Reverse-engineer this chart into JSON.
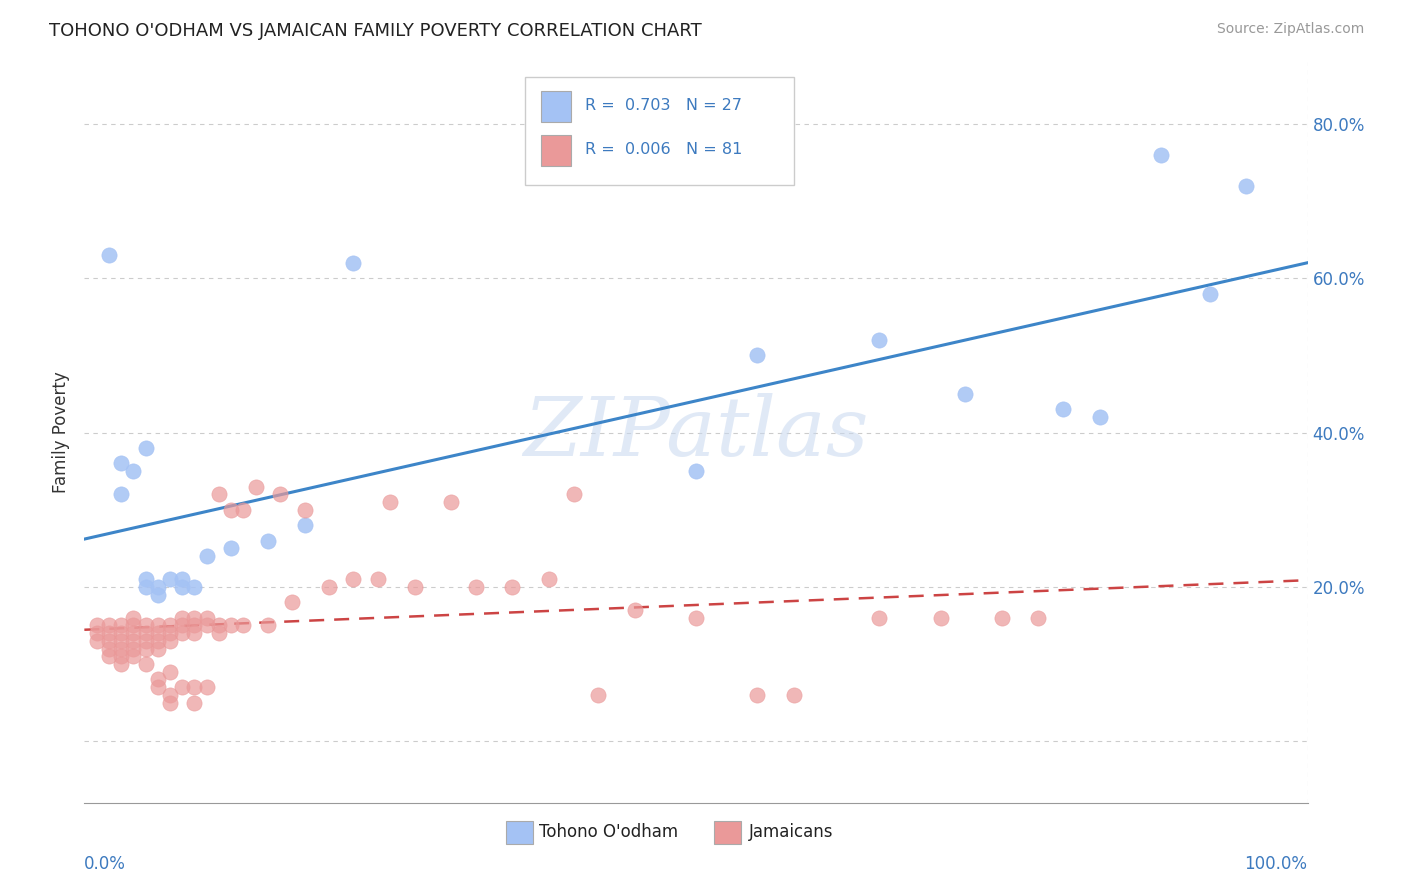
{
  "title": "TOHONO O'ODHAM VS JAMAICAN FAMILY POVERTY CORRELATION CHART",
  "source": "Source: ZipAtlas.com",
  "ylabel": "Family Poverty",
  "y_ticks": [
    0,
    20,
    40,
    60,
    80
  ],
  "y_tick_labels": [
    "",
    "20.0%",
    "40.0%",
    "60.0%",
    "80.0%"
  ],
  "x_range": [
    0,
    100
  ],
  "y_range": [
    -8,
    88
  ],
  "blue_color": "#a4c2f4",
  "pink_color": "#ea9999",
  "blue_line_color": "#3d85c8",
  "pink_line_color": "#cc4444",
  "watermark_text": "ZIPatlas",
  "tohono_points": [
    [
      2,
      63
    ],
    [
      3,
      36
    ],
    [
      3,
      32
    ],
    [
      4,
      35
    ],
    [
      5,
      38
    ],
    [
      5,
      21
    ],
    [
      5,
      20
    ],
    [
      6,
      20
    ],
    [
      6,
      19
    ],
    [
      7,
      21
    ],
    [
      8,
      21
    ],
    [
      8,
      20
    ],
    [
      9,
      20
    ],
    [
      10,
      24
    ],
    [
      12,
      25
    ],
    [
      15,
      26
    ],
    [
      18,
      28
    ],
    [
      22,
      62
    ],
    [
      50,
      35
    ],
    [
      55,
      50
    ],
    [
      65,
      52
    ],
    [
      72,
      45
    ],
    [
      80,
      43
    ],
    [
      83,
      42
    ],
    [
      88,
      76
    ],
    [
      92,
      58
    ],
    [
      95,
      72
    ]
  ],
  "jamaican_points": [
    [
      1,
      15
    ],
    [
      1,
      14
    ],
    [
      1,
      13
    ],
    [
      2,
      15
    ],
    [
      2,
      14
    ],
    [
      2,
      13
    ],
    [
      2,
      12
    ],
    [
      2,
      11
    ],
    [
      3,
      15
    ],
    [
      3,
      14
    ],
    [
      3,
      13
    ],
    [
      3,
      12
    ],
    [
      3,
      11
    ],
    [
      3,
      10
    ],
    [
      4,
      16
    ],
    [
      4,
      15
    ],
    [
      4,
      14
    ],
    [
      4,
      13
    ],
    [
      4,
      12
    ],
    [
      4,
      11
    ],
    [
      5,
      15
    ],
    [
      5,
      14
    ],
    [
      5,
      13
    ],
    [
      5,
      12
    ],
    [
      5,
      10
    ],
    [
      6,
      15
    ],
    [
      6,
      14
    ],
    [
      6,
      13
    ],
    [
      6,
      12
    ],
    [
      6,
      8
    ],
    [
      6,
      7
    ],
    [
      7,
      15
    ],
    [
      7,
      14
    ],
    [
      7,
      13
    ],
    [
      7,
      9
    ],
    [
      7,
      6
    ],
    [
      7,
      5
    ],
    [
      8,
      16
    ],
    [
      8,
      15
    ],
    [
      8,
      14
    ],
    [
      8,
      7
    ],
    [
      9,
      16
    ],
    [
      9,
      15
    ],
    [
      9,
      14
    ],
    [
      9,
      7
    ],
    [
      9,
      5
    ],
    [
      10,
      16
    ],
    [
      10,
      15
    ],
    [
      10,
      7
    ],
    [
      11,
      15
    ],
    [
      11,
      14
    ],
    [
      11,
      32
    ],
    [
      12,
      15
    ],
    [
      12,
      30
    ],
    [
      13,
      15
    ],
    [
      13,
      30
    ],
    [
      14,
      33
    ],
    [
      15,
      15
    ],
    [
      16,
      32
    ],
    [
      17,
      18
    ],
    [
      18,
      30
    ],
    [
      20,
      20
    ],
    [
      22,
      21
    ],
    [
      24,
      21
    ],
    [
      25,
      31
    ],
    [
      27,
      20
    ],
    [
      30,
      31
    ],
    [
      32,
      20
    ],
    [
      35,
      20
    ],
    [
      38,
      21
    ],
    [
      40,
      32
    ],
    [
      42,
      6
    ],
    [
      45,
      17
    ],
    [
      50,
      16
    ],
    [
      55,
      6
    ],
    [
      58,
      6
    ],
    [
      65,
      16
    ],
    [
      70,
      16
    ],
    [
      75,
      16
    ],
    [
      78,
      16
    ]
  ]
}
